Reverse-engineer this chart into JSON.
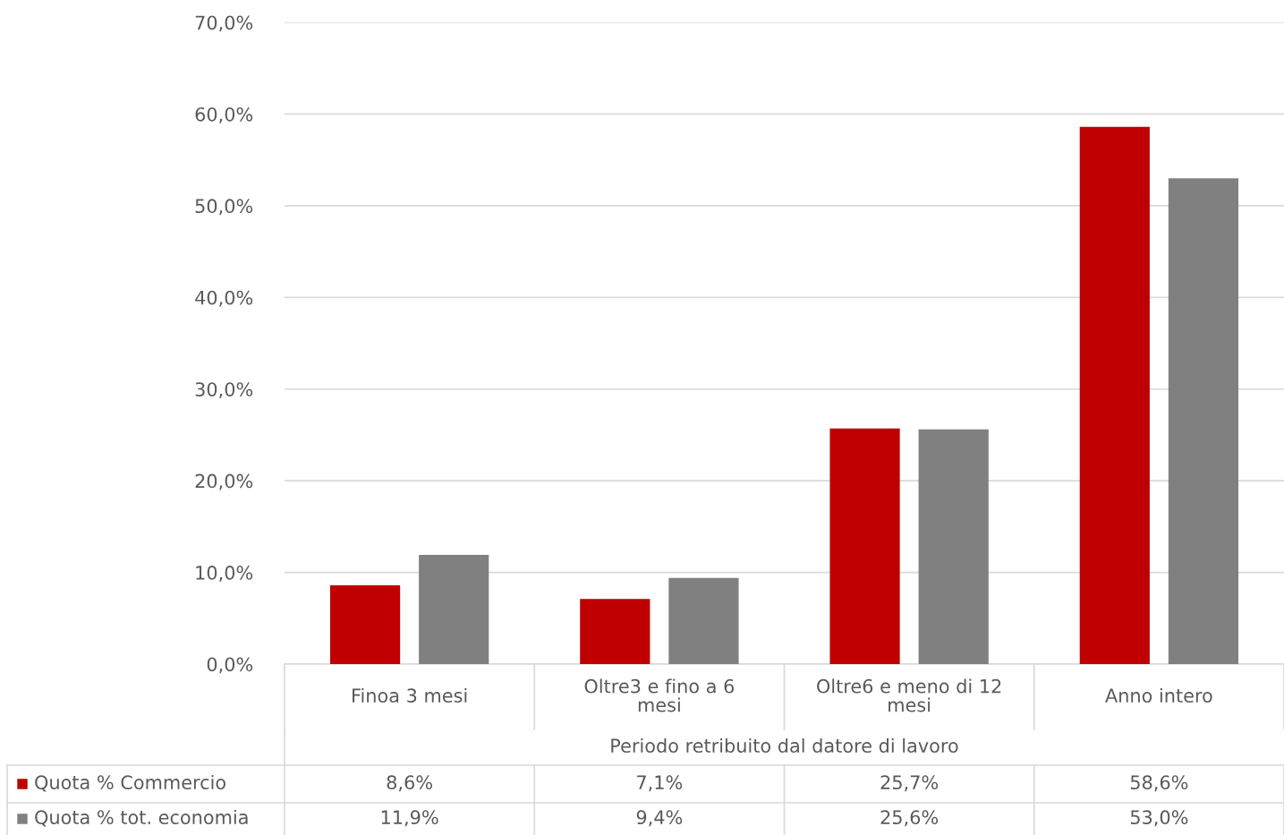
{
  "chart_data": {
    "type": "bar",
    "categories": [
      "Finoa 3 mesi",
      "Oltre3 e fino a 6\nmesi",
      "Oltre6 e meno di 12\nmesi",
      "Anno intero"
    ],
    "xlabel": "Periodo retribuito dal datore di lavoro",
    "series": [
      {
        "name": "Quota % Commercio",
        "color": "#c00000",
        "values": [
          8.6,
          7.1,
          25.7,
          58.6
        ],
        "value_labels": [
          "8,6%",
          "7,1%",
          "25,7%",
          "58,6%"
        ]
      },
      {
        "name": "Quota % tot. economia",
        "color": "#808080",
        "values": [
          11.9,
          9.4,
          25.6,
          53.0
        ],
        "value_labels": [
          "11,9%",
          "9,4%",
          "25,6%",
          "53,0%"
        ]
      }
    ],
    "ylim": [
      0,
      70
    ],
    "yticks": [
      {
        "value": 0,
        "label": "0,0%"
      },
      {
        "value": 10,
        "label": "10,0%"
      },
      {
        "value": 20,
        "label": "20,0%"
      },
      {
        "value": 30,
        "label": "30,0%"
      },
      {
        "value": 40,
        "label": "40,0%"
      },
      {
        "value": 50,
        "label": "50,0%"
      },
      {
        "value": 60,
        "label": "60,0%"
      },
      {
        "value": 70,
        "label": "70,0%"
      }
    ],
    "grid": "y",
    "legend": "bottom"
  }
}
